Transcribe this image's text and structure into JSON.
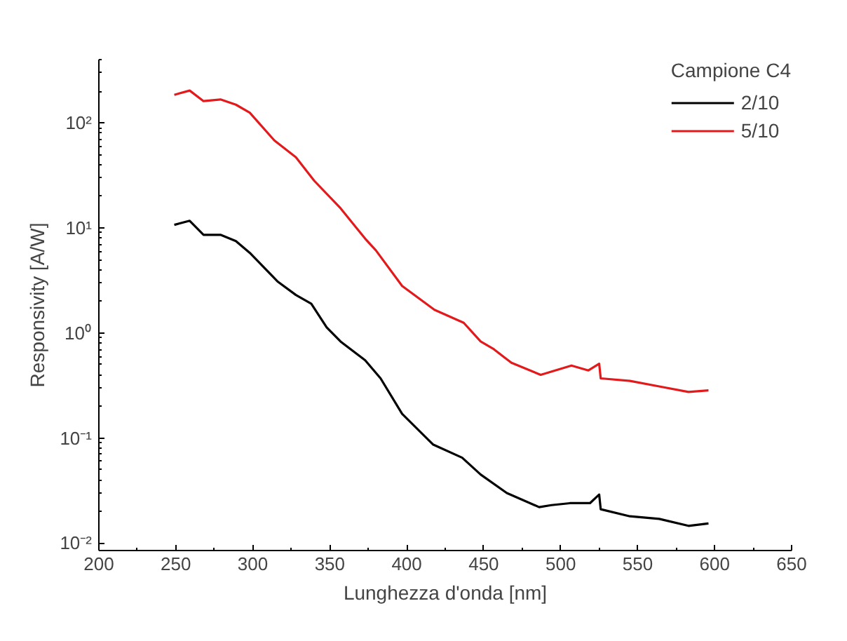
{
  "chart_data": {
    "type": "line",
    "xlabel": "Lunghezza d'onda [nm]",
    "ylabel": "Responsivity [A/W]",
    "legend_title": "Campione C4",
    "xlim": [
      200,
      650
    ],
    "xticks": [
      200,
      250,
      300,
      350,
      400,
      450,
      500,
      550,
      600,
      650
    ],
    "ylim": [
      0.0085,
      400
    ],
    "log": true,
    "yticks": [
      {
        "value": 0.01,
        "label": "10⁻²"
      },
      {
        "value": 0.1,
        "label": "10⁻¹"
      },
      {
        "value": 1,
        "label": "10⁰"
      },
      {
        "value": 10,
        "label": "10¹"
      },
      {
        "value": 100,
        "label": "10²"
      }
    ],
    "grid": false,
    "legend": "top right",
    "marker": "none",
    "line_style": "solid",
    "series": [
      {
        "name": "2/10",
        "color": "#000000",
        "x": [
          249,
          259,
          268,
          279,
          289,
          298,
          316,
          328,
          338,
          348,
          357,
          373,
          383,
          397,
          417,
          436,
          448,
          465,
          486,
          494,
          506,
          519,
          525,
          526,
          545,
          564,
          583,
          596
        ],
        "values": [
          10.7,
          11.7,
          8.6,
          8.6,
          7.5,
          5.8,
          3.1,
          2.3,
          1.9,
          1.13,
          0.83,
          0.55,
          0.37,
          0.17,
          0.087,
          0.065,
          0.045,
          0.03,
          0.022,
          0.023,
          0.024,
          0.024,
          0.029,
          0.021,
          0.018,
          0.017,
          0.0146,
          0.0154
        ]
      },
      {
        "name": "5/10",
        "color": "#e31a1c",
        "x": [
          249,
          259,
          268,
          279,
          289,
          298,
          314,
          328,
          340,
          357,
          373,
          380,
          397,
          418,
          437,
          448,
          456,
          468,
          487,
          507,
          518,
          525,
          526,
          545,
          564,
          583,
          596
        ],
        "values": [
          185,
          203,
          161,
          167,
          149,
          125,
          68,
          47,
          28,
          15.4,
          7.9,
          6.1,
          2.8,
          1.66,
          1.25,
          0.83,
          0.71,
          0.52,
          0.4,
          0.49,
          0.44,
          0.51,
          0.37,
          0.35,
          0.31,
          0.275,
          0.284
        ]
      }
    ]
  }
}
